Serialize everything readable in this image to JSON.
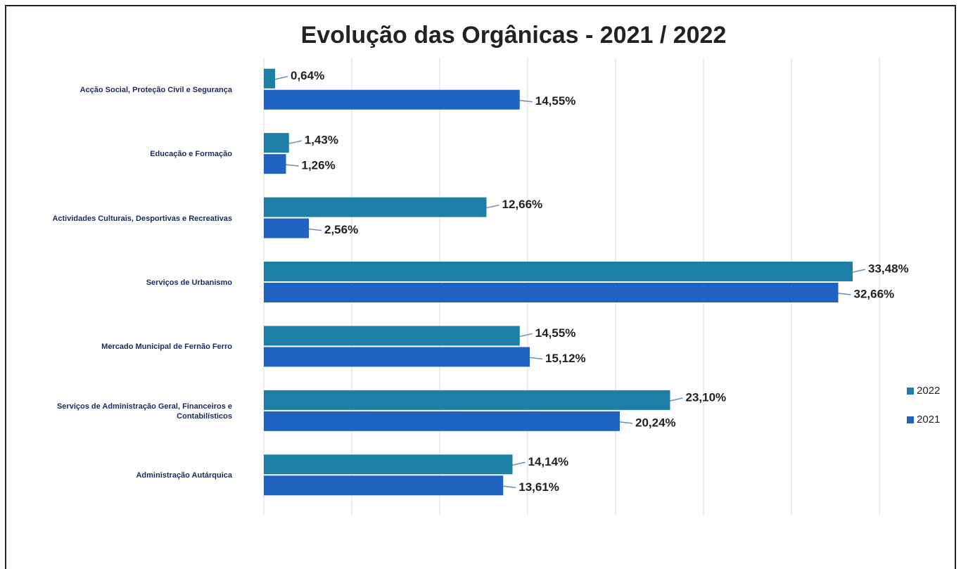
{
  "chart_data": {
    "type": "hbar",
    "title": "Evolução das Orgânicas - 2021 / 2022",
    "categories": [
      "Acção Social, Proteção Civil e Segurança",
      "Educação e Formação",
      "Actividades Culturais, Desportivas e Recreativas",
      "Serviços de Urbanismo",
      "Mercado Municipal de Fernão Ferro",
      "Serviços de Administração Geral, Financeiros e Contabilísticos",
      "Administração Autárquica"
    ],
    "series": [
      {
        "name": "2022",
        "color": "#1d7fa6",
        "values": [
          0.64,
          1.43,
          12.66,
          33.48,
          14.55,
          23.1,
          14.14
        ],
        "value_labels": [
          "0,64%",
          "1,43%",
          "12,66%",
          "33,48%",
          "14,55%",
          "23,10%",
          "14,14%"
        ]
      },
      {
        "name": "2021",
        "color": "#1f62c2",
        "values": [
          14.55,
          1.26,
          2.56,
          32.66,
          15.12,
          20.24,
          13.61
        ],
        "value_labels": [
          "14,55%",
          "1,26%",
          "2,56%",
          "32,66%",
          "15,12%",
          "20,24%",
          "13,61%"
        ]
      }
    ],
    "xlim": [
      0,
      35
    ],
    "xticks": [
      0,
      5,
      10,
      15,
      20,
      25,
      30,
      35
    ],
    "grid": true,
    "legend": "right"
  }
}
